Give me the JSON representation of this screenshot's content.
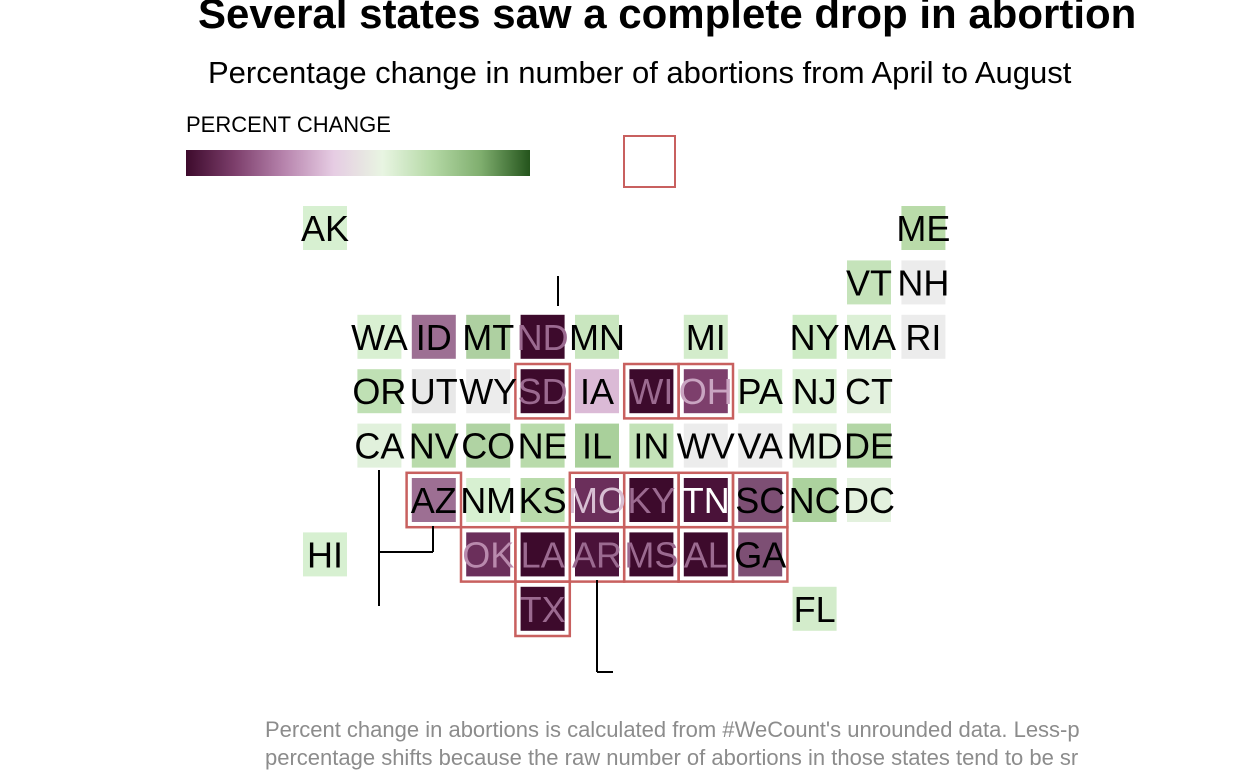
{
  "chart": {
    "title": "Several states saw a complete drop in abortion",
    "subtitle": "Percentage change in number of abortions from April to August",
    "legend_title": "PERCENT CHANGE",
    "footnote_line1": "Percent change in abortions is calculated from #WeCount's unrounded data. Less-p",
    "footnote_line2": "percentage shifts because the raw number of abortions in those states tend to be sr"
  },
  "colors": {
    "scale": [
      "#3d0a2c",
      "#7d3f6c",
      "#b784ad",
      "#e6cce3",
      "#e8f5e2",
      "#b5d9a6",
      "#7fae6e",
      "#24541c"
    ],
    "outline": "#c8605f",
    "leader_line": "#000000"
  },
  "chart_data": {
    "type": "tile-grid-map",
    "legend_placement": "top-left",
    "tiles": [
      {
        "state": "AK",
        "fill": "#d7f0d1",
        "outlined": false,
        "label_color": "#000000"
      },
      {
        "state": "ME",
        "fill": "#b9dba9",
        "outlined": false,
        "label_color": "#000000"
      },
      {
        "state": "VT",
        "fill": "#c5e3ba",
        "outlined": false,
        "label_color": "#000000"
      },
      {
        "state": "NH",
        "fill": "#ececec",
        "outlined": false,
        "label_color": "#000000"
      },
      {
        "state": "WA",
        "fill": "#d9f0d2",
        "outlined": false,
        "label_color": "#000000"
      },
      {
        "state": "ID",
        "fill": "#9d6f93",
        "outlined": false,
        "label_color": "#000000"
      },
      {
        "state": "MT",
        "fill": "#aed0a1",
        "outlined": false,
        "label_color": "#000000"
      },
      {
        "state": "ND",
        "fill": "#3d0a2c",
        "outlined": false,
        "label_color": "#9b6a90"
      },
      {
        "state": "MN",
        "fill": "#c9e6bf",
        "outlined": false,
        "label_color": "#000000"
      },
      {
        "state": "MI",
        "fill": "#d3eccb",
        "outlined": false,
        "label_color": "#000000"
      },
      {
        "state": "NY",
        "fill": "#cdebc4",
        "outlined": false,
        "label_color": "#000000"
      },
      {
        "state": "MA",
        "fill": "#dcf0d6",
        "outlined": false,
        "label_color": "#000000"
      },
      {
        "state": "RI",
        "fill": "#ececec",
        "outlined": false,
        "label_color": "#000000"
      },
      {
        "state": "OR",
        "fill": "#bfe0b4",
        "outlined": false,
        "label_color": "#000000"
      },
      {
        "state": "UT",
        "fill": "#e8e8e8",
        "outlined": false,
        "label_color": "#000000"
      },
      {
        "state": "WY",
        "fill": "#ececec",
        "outlined": false,
        "label_color": "#000000"
      },
      {
        "state": "SD",
        "fill": "#3d0a2c",
        "outlined": true,
        "label_color": "#9b6a90"
      },
      {
        "state": "IA",
        "fill": "#dbbad6",
        "outlined": false,
        "label_color": "#000000"
      },
      {
        "state": "WI",
        "fill": "#3d0a2c",
        "outlined": true,
        "label_color": "#9b6a90"
      },
      {
        "state": "OH",
        "fill": "#7d3f6c",
        "outlined": true,
        "label_color": "#c9a4c1"
      },
      {
        "state": "PA",
        "fill": "#d7f0d1",
        "outlined": false,
        "label_color": "#000000"
      },
      {
        "state": "NJ",
        "fill": "#dcf1d6",
        "outlined": false,
        "label_color": "#000000"
      },
      {
        "state": "CT",
        "fill": "#e3f1de",
        "outlined": false,
        "label_color": "#000000"
      },
      {
        "state": "CA",
        "fill": "#e1f1dc",
        "outlined": false,
        "label_color": "#000000"
      },
      {
        "state": "NV",
        "fill": "#b9dbab",
        "outlined": false,
        "label_color": "#000000"
      },
      {
        "state": "CO",
        "fill": "#b0d3a3",
        "outlined": false,
        "label_color": "#000000"
      },
      {
        "state": "NE",
        "fill": "#b9dbab",
        "outlined": false,
        "label_color": "#000000"
      },
      {
        "state": "IL",
        "fill": "#a9d09b",
        "outlined": false,
        "label_color": "#000000"
      },
      {
        "state": "IN",
        "fill": "#c3e2b8",
        "outlined": false,
        "label_color": "#000000"
      },
      {
        "state": "WV",
        "fill": "#ececec",
        "outlined": false,
        "label_color": "#000000"
      },
      {
        "state": "VA",
        "fill": "#ececec",
        "outlined": false,
        "label_color": "#000000"
      },
      {
        "state": "MD",
        "fill": "#e3f1de",
        "outlined": false,
        "label_color": "#000000"
      },
      {
        "state": "DE",
        "fill": "#b3d6a6",
        "outlined": false,
        "label_color": "#000000"
      },
      {
        "state": "AZ",
        "fill": "#9d6f93",
        "outlined": true,
        "label_color": "#000000"
      },
      {
        "state": "NM",
        "fill": "#d7f0d1",
        "outlined": false,
        "label_color": "#000000"
      },
      {
        "state": "KS",
        "fill": "#b9dbab",
        "outlined": false,
        "label_color": "#000000"
      },
      {
        "state": "MO",
        "fill": "#6b2f5b",
        "outlined": true,
        "label_color": "#d8bfd3"
      },
      {
        "state": "KY",
        "fill": "#3d0a2c",
        "outlined": true,
        "label_color": "#9b6a90"
      },
      {
        "state": "TN",
        "fill": "#4a1239",
        "outlined": true,
        "label_color": "#ffffff"
      },
      {
        "state": "SC",
        "fill": "#7d4f74",
        "outlined": true,
        "label_color": "#000000"
      },
      {
        "state": "NC",
        "fill": "#acd29e",
        "outlined": false,
        "label_color": "#000000"
      },
      {
        "state": "DC",
        "fill": "#e3f1de",
        "outlined": false,
        "label_color": "#000000"
      },
      {
        "state": "HI",
        "fill": "#d7f0d1",
        "outlined": false,
        "label_color": "#000000"
      },
      {
        "state": "OK",
        "fill": "#6b2f5b",
        "outlined": true,
        "label_color": "#b98aad"
      },
      {
        "state": "LA",
        "fill": "#3d0a2c",
        "outlined": true,
        "label_color": "#9b6a90"
      },
      {
        "state": "AR",
        "fill": "#4a1239",
        "outlined": true,
        "label_color": "#9b6a90"
      },
      {
        "state": "MS",
        "fill": "#3d0a2c",
        "outlined": true,
        "label_color": "#9b6a90"
      },
      {
        "state": "AL",
        "fill": "#3d0a2c",
        "outlined": true,
        "label_color": "#9b6a90"
      },
      {
        "state": "GA",
        "fill": "#7d4f74",
        "outlined": true,
        "label_color": "#000000"
      },
      {
        "state": "TX",
        "fill": "#3d0a2c",
        "outlined": true,
        "label_color": "#9b6a90"
      },
      {
        "state": "FL",
        "fill": "#d3eccb",
        "outlined": false,
        "label_color": "#000000"
      }
    ]
  }
}
